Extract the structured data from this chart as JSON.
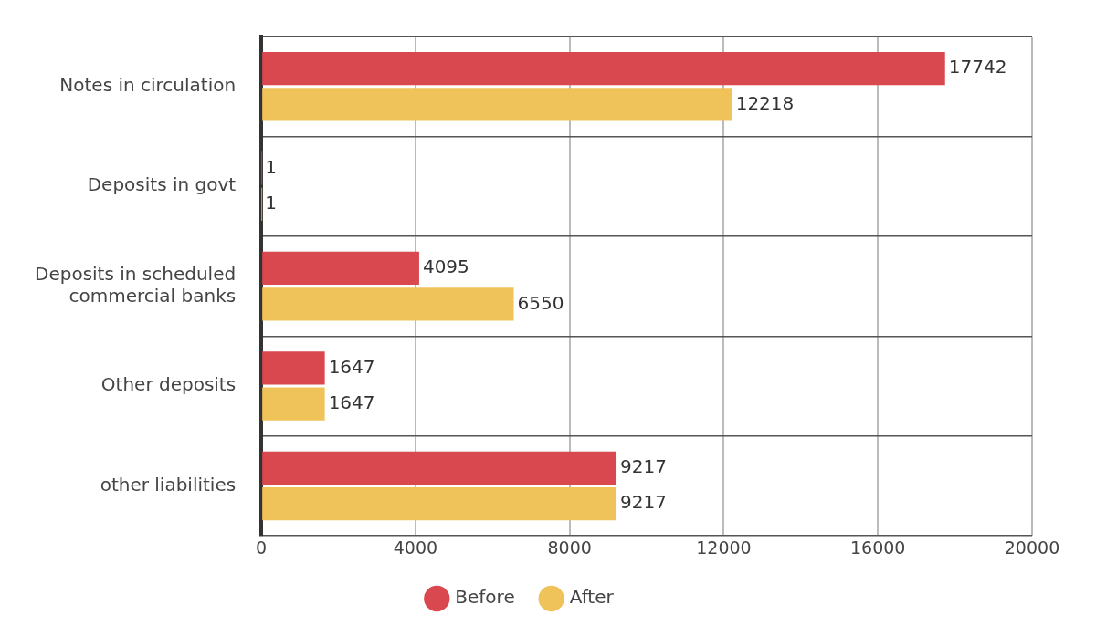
{
  "chart_data": {
    "type": "bar",
    "orientation": "horizontal",
    "categories": [
      "Notes in circulation",
      "Deposits in govt",
      "Deposits in scheduled commercial banks",
      "Other deposits",
      "other liabilities"
    ],
    "series": [
      {
        "name": "Before",
        "color": "#d9474f",
        "values": [
          17742,
          1,
          4095,
          1647,
          9217
        ]
      },
      {
        "name": "After",
        "color": "#f0c35a",
        "values": [
          12218,
          1,
          6550,
          1647,
          9217
        ]
      }
    ],
    "xlim": [
      0,
      20000
    ],
    "xticks": [
      0,
      4000,
      8000,
      12000,
      16000,
      20000
    ],
    "grid": true,
    "legend": "bottom",
    "data_labels": true
  }
}
